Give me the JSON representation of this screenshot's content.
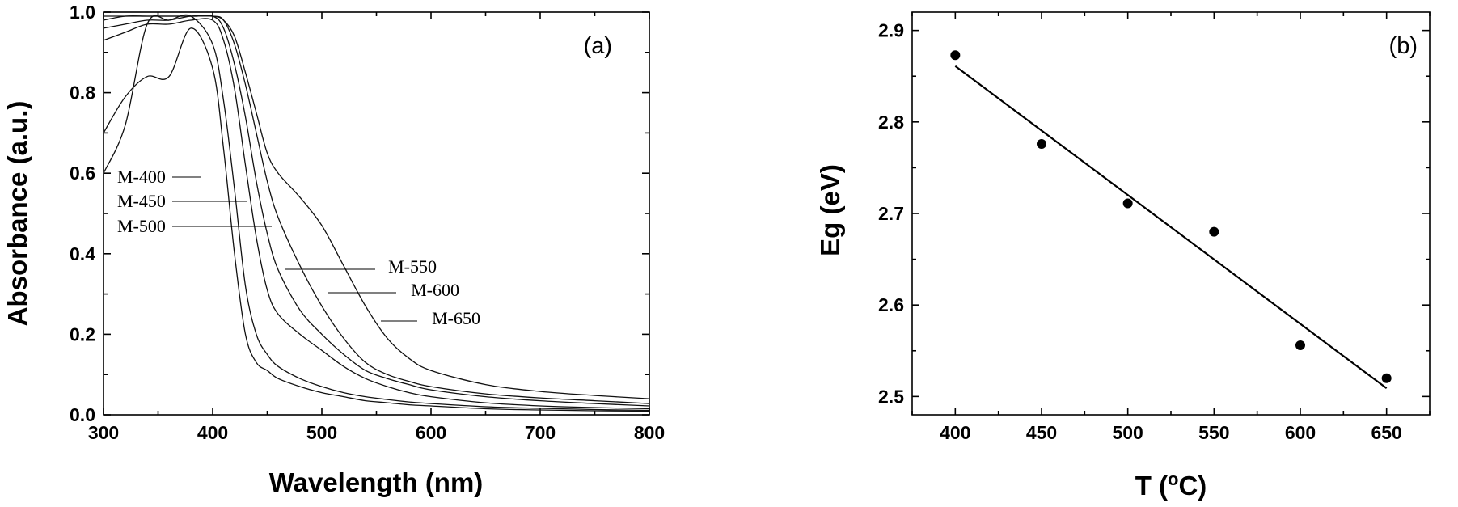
{
  "chart_data": [
    {
      "type": "line",
      "panel_label": "(a)",
      "xlabel": "Wavelength (nm)",
      "ylabel": "Absorbance (a.u.)",
      "xlim": [
        300,
        800
      ],
      "ylim": [
        0.0,
        1.0
      ],
      "xticks": [
        "300",
        "400",
        "500",
        "600",
        "700",
        "800"
      ],
      "yticks": [
        "0.0",
        "0.2",
        "0.4",
        "0.6",
        "0.8",
        "1.0"
      ],
      "x": [
        300,
        320,
        340,
        360,
        380,
        400,
        410,
        420,
        430,
        440,
        450,
        460,
        480,
        500,
        520,
        540,
        560,
        580,
        600,
        650,
        700,
        750,
        800
      ],
      "series": [
        {
          "name": "M-400",
          "values": [
            0.7,
            0.79,
            0.84,
            0.84,
            0.96,
            0.86,
            0.66,
            0.4,
            0.2,
            0.13,
            0.11,
            0.09,
            0.07,
            0.055,
            0.045,
            0.035,
            0.03,
            0.025,
            0.022,
            0.015,
            0.012,
            0.01,
            0.009
          ]
        },
        {
          "name": "M-450",
          "values": [
            0.6,
            0.72,
            0.97,
            0.98,
            0.99,
            0.92,
            0.78,
            0.56,
            0.32,
            0.2,
            0.15,
            0.12,
            0.09,
            0.07,
            0.055,
            0.045,
            0.038,
            0.032,
            0.028,
            0.02,
            0.016,
            0.013,
            0.011
          ]
        },
        {
          "name": "M-500",
          "values": [
            0.93,
            0.95,
            0.97,
            0.97,
            0.98,
            0.98,
            0.93,
            0.81,
            0.62,
            0.44,
            0.31,
            0.25,
            0.2,
            0.16,
            0.12,
            0.09,
            0.07,
            0.055,
            0.045,
            0.03,
            0.022,
            0.018,
            0.015
          ]
        },
        {
          "name": "M-550",
          "values": [
            0.96,
            0.97,
            0.98,
            0.98,
            0.99,
            0.99,
            0.96,
            0.87,
            0.74,
            0.58,
            0.45,
            0.36,
            0.26,
            0.2,
            0.15,
            0.11,
            0.09,
            0.075,
            0.062,
            0.045,
            0.035,
            0.028,
            0.022
          ]
        },
        {
          "name": "M-600",
          "values": [
            0.98,
            0.99,
            0.99,
            0.99,
            0.99,
            0.99,
            0.98,
            0.92,
            0.82,
            0.7,
            0.58,
            0.49,
            0.37,
            0.27,
            0.19,
            0.13,
            0.1,
            0.083,
            0.07,
            0.052,
            0.042,
            0.035,
            0.028
          ]
        },
        {
          "name": "M-650",
          "values": [
            0.99,
            0.99,
            0.99,
            0.99,
            0.99,
            0.99,
            0.98,
            0.94,
            0.85,
            0.75,
            0.65,
            0.6,
            0.54,
            0.47,
            0.37,
            0.27,
            0.19,
            0.14,
            0.11,
            0.075,
            0.058,
            0.048,
            0.04
          ]
        }
      ]
    },
    {
      "type": "scatter",
      "panel_label": "(b)",
      "xlabel": "T (",
      "xlabel_sup": "o",
      "xlabel_end": "C)",
      "ylabel": "Eg (eV)",
      "xlim": [
        375,
        675
      ],
      "ylim": [
        2.48,
        2.92
      ],
      "xticks": [
        "400",
        "450",
        "500",
        "550",
        "600",
        "650"
      ],
      "yticks": [
        "2.5",
        "2.6",
        "2.7",
        "2.8",
        "2.9"
      ],
      "x": [
        400,
        450,
        500,
        550,
        600,
        650
      ],
      "y": [
        2.873,
        2.776,
        2.711,
        2.68,
        2.556,
        2.52
      ],
      "fit_line": {
        "x": [
          400,
          650
        ],
        "y": [
          2.861,
          2.509
        ]
      }
    }
  ]
}
